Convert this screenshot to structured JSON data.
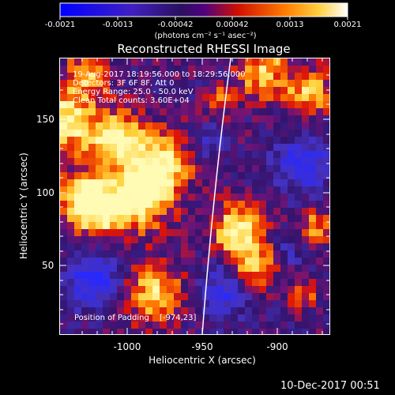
{
  "colorbar": {
    "tick_labels": [
      "-0.0021",
      "-0.0013",
      "-0.00042",
      "0.00042",
      "0.0013",
      "0.0021"
    ],
    "unit_label": "(photons cm⁻² s⁻¹ asec⁻²)"
  },
  "plot": {
    "title": "Reconstructed RHESSI Image",
    "info_lines": [
      "19-Aug-2017 18:19:56.000 to 18:29:56.000",
      "Detectors: 3F 6F 8F, Att 0",
      "Energy Range: 25.0 - 50.0 keV",
      "Clean     Total counts: 3.60E+04"
    ],
    "padding_text": "Position of Padding",
    "padding_coords": "[-974,23]",
    "xlabel": "Heliocentric X (arcsec)",
    "ylabel": "Heliocentric Y (arcsec)",
    "x_ticks": [
      "-1000",
      "-950",
      "-900"
    ],
    "y_ticks": [
      "150",
      "100",
      "50"
    ],
    "colors": {
      "blue": "#3030ff",
      "purple": "#3a1a78",
      "red": "#e02000",
      "orange": "#ff8c00",
      "yellow": "#ffee40"
    }
  },
  "footer": {
    "timestamp": "10-Dec-2017 00:51"
  }
}
